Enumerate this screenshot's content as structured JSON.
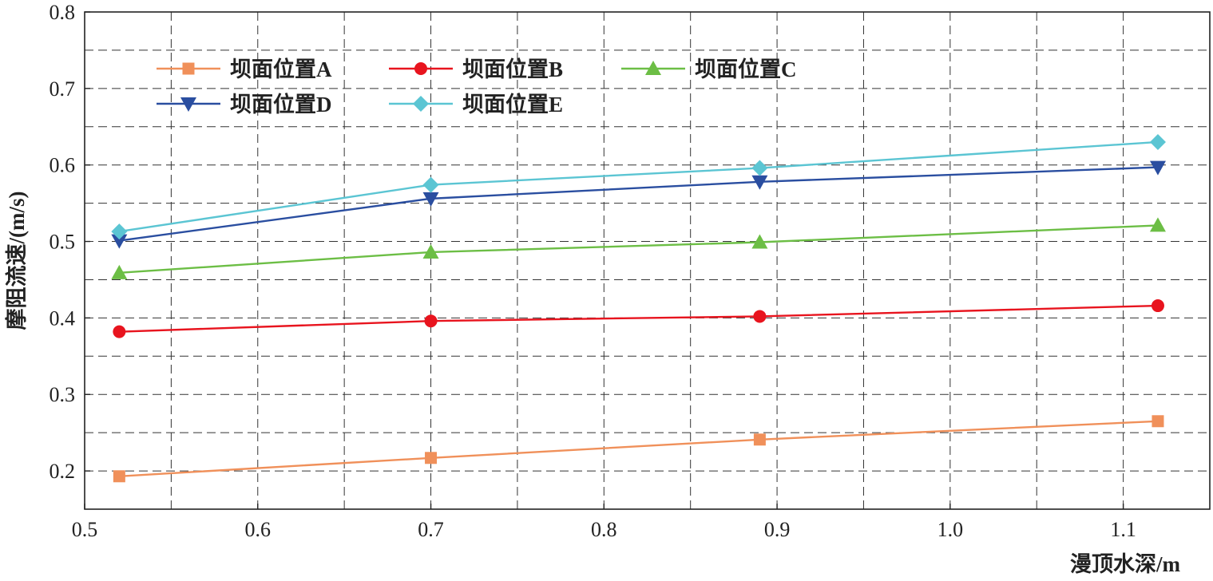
{
  "chart_data": {
    "type": "line",
    "title": "",
    "xlabel": "漫顶水深/m",
    "ylabel": "摩阻流速/(m/s)",
    "xlim": [
      0.5,
      1.15
    ],
    "ylim": [
      0.15,
      0.8
    ],
    "x_ticks": [
      "0.5",
      "0.6",
      "0.7",
      "0.8",
      "0.9",
      "1.0",
      "1.1"
    ],
    "y_ticks": [
      "0.2",
      "0.3",
      "0.4",
      "0.5",
      "0.6",
      "0.7",
      "0.8"
    ],
    "grid": true,
    "legend_position": "top-left",
    "x": [
      0.52,
      0.7,
      0.89,
      1.12
    ],
    "series": [
      {
        "name": "坝面位置A",
        "values": [
          0.193,
          0.217,
          0.241,
          0.265
        ],
        "color": "#f0905a",
        "marker": "square"
      },
      {
        "name": "坝面位置B",
        "values": [
          0.382,
          0.396,
          0.402,
          0.416
        ],
        "color": "#e8141e",
        "marker": "circle"
      },
      {
        "name": "坝面位置C",
        "values": [
          0.459,
          0.486,
          0.499,
          0.521
        ],
        "color": "#6cbe45",
        "marker": "triangle-up"
      },
      {
        "name": "坝面位置D",
        "values": [
          0.501,
          0.556,
          0.578,
          0.597
        ],
        "color": "#2a4ea0",
        "marker": "triangle-down"
      },
      {
        "name": "坝面位置E",
        "values": [
          0.513,
          0.574,
          0.596,
          0.63
        ],
        "color": "#5bc5d3",
        "marker": "diamond"
      }
    ]
  }
}
